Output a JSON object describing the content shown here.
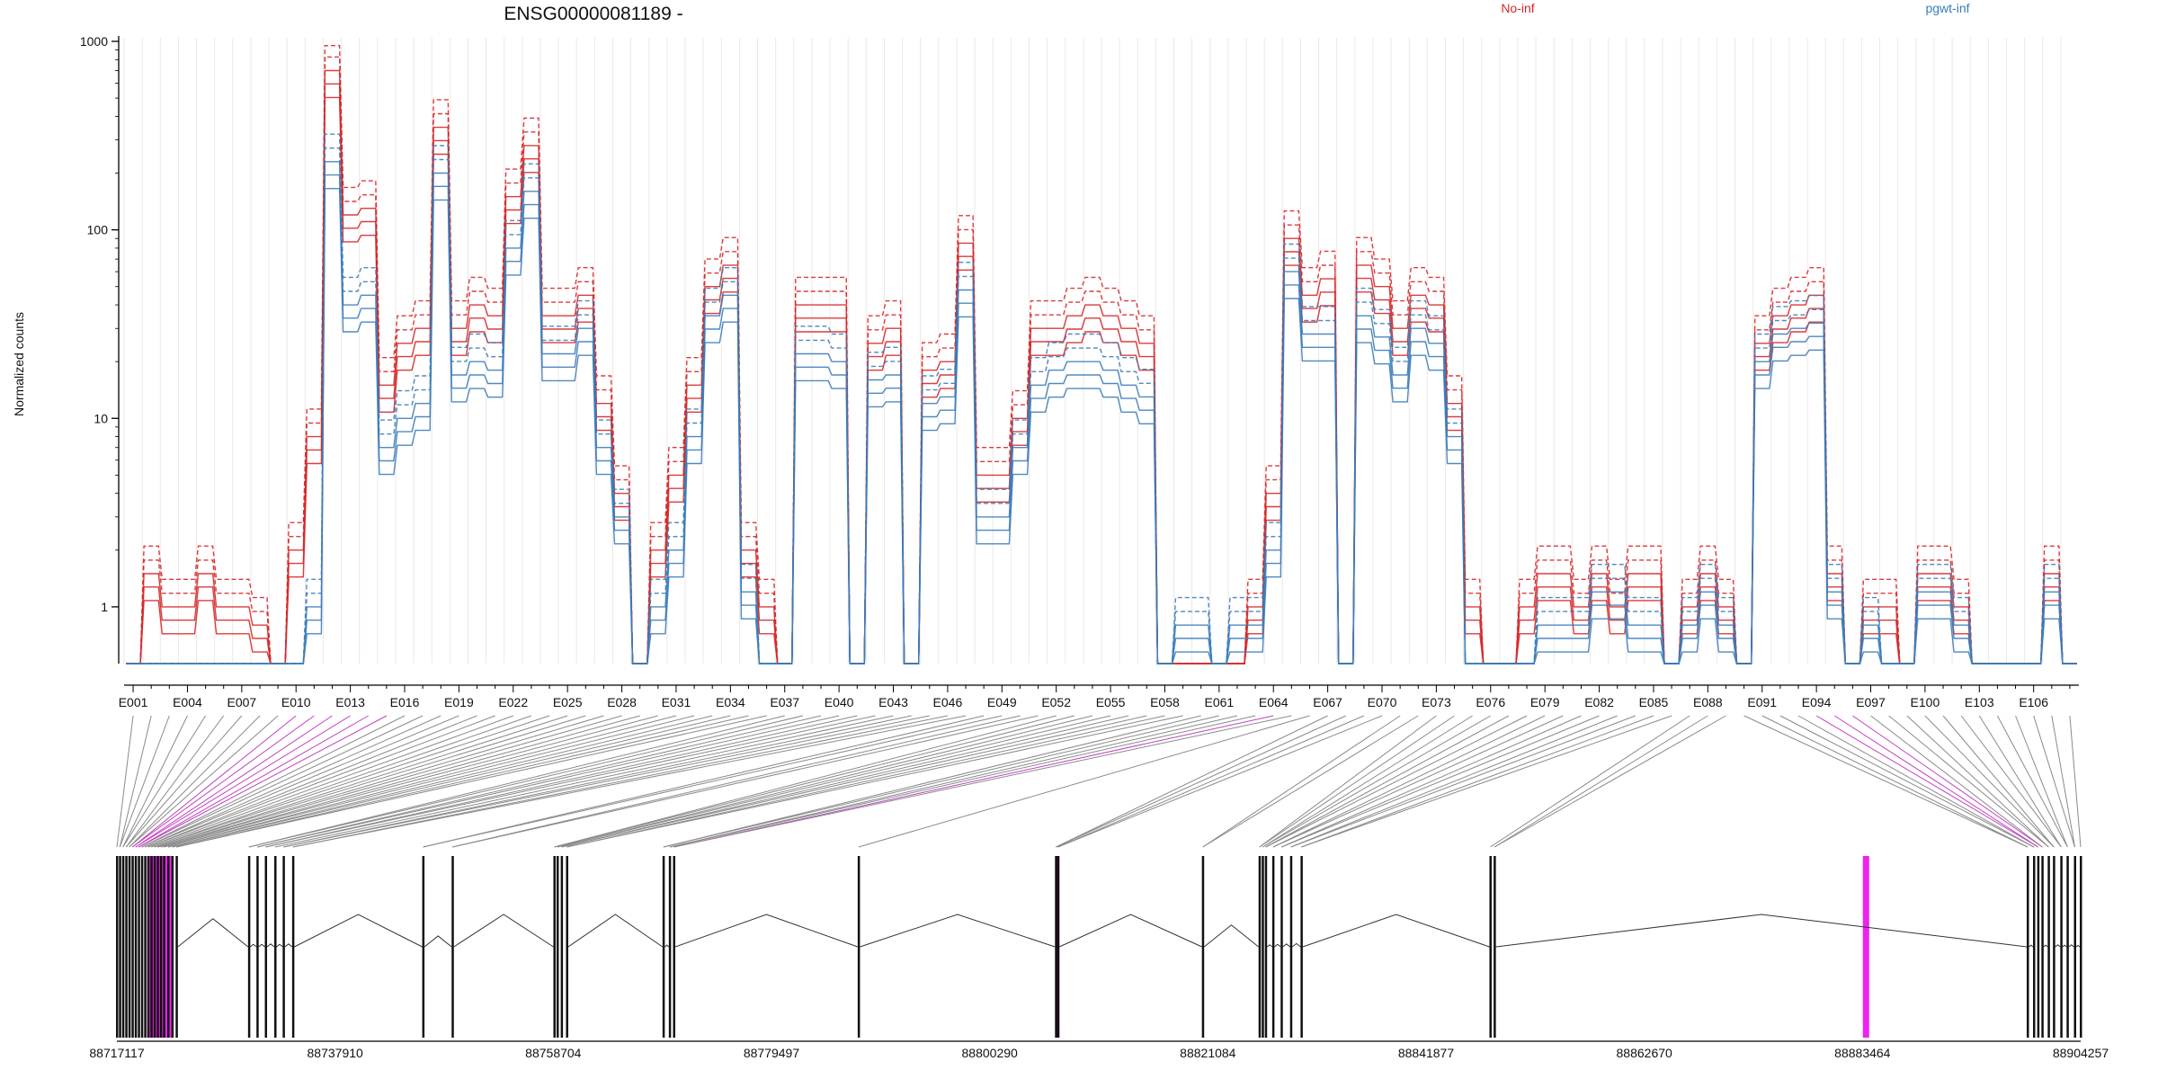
{
  "chart_data": {
    "type": "line",
    "title": "ENSG00000081189 -",
    "ylabel": "Normalized counts",
    "yscale": "log",
    "y_ticks": [
      "1",
      "10",
      "100",
      "1000"
    ],
    "legend_placement": "top-right",
    "colors": {
      "No-inf": "#d62728",
      "pgwt-inf": "#3a7dba",
      "highlight": "#ee22ee"
    },
    "exons": [
      "E001",
      "E002",
      "E003",
      "E004",
      "E005",
      "E006",
      "E007",
      "E008",
      "E009",
      "E010",
      "E011",
      "E012",
      "E013",
      "E014",
      "E015",
      "E016",
      "E017",
      "E018",
      "E019",
      "E020",
      "E021",
      "E022",
      "E023",
      "E024",
      "E025",
      "E026",
      "E027",
      "E028",
      "E029",
      "E030",
      "E031",
      "E032",
      "E033",
      "E034",
      "E035",
      "E036",
      "E037",
      "E038",
      "E039",
      "E040",
      "E041",
      "E042",
      "E043",
      "E044",
      "E045",
      "E046",
      "E047",
      "E048",
      "E049",
      "E050",
      "E051",
      "E052",
      "E053",
      "E054",
      "E055",
      "E056",
      "E057",
      "E058",
      "E059",
      "E060",
      "E061",
      "E062",
      "E063",
      "E064",
      "E065",
      "E066",
      "E067",
      "E068",
      "E069",
      "E070",
      "E071",
      "E072",
      "E073",
      "E074",
      "E075",
      "E076",
      "E077",
      "E078",
      "E079",
      "E080",
      "E081",
      "E082",
      "E083",
      "E084",
      "E085",
      "E086",
      "E087",
      "E088",
      "E089",
      "E090",
      "E091",
      "E092",
      "E093",
      "E094",
      "E095",
      "E096",
      "E097",
      "E098",
      "E099",
      "E100",
      "E101",
      "E102",
      "E103",
      "E104",
      "E105",
      "E106",
      "E107",
      "E108"
    ],
    "exon_tick_labels": [
      "E001",
      "E004",
      "E007",
      "E010",
      "E013",
      "E016",
      "E019",
      "E022",
      "E025",
      "E028",
      "E031",
      "E034",
      "E037",
      "E040",
      "E043",
      "E046",
      "E049",
      "E052",
      "E055",
      "E058",
      "E061",
      "E064",
      "E067",
      "E070",
      "E073",
      "E076",
      "E079",
      "E082",
      "E085",
      "E088",
      "E091",
      "E094",
      "E097",
      "E100",
      "E103",
      "E106"
    ],
    "series_profile": {
      "No-inf": [
        0.5,
        1.5,
        1,
        1,
        1.5,
        1,
        1,
        0.8,
        0.5,
        2,
        8,
        700,
        120,
        130,
        15,
        25,
        30,
        350,
        30,
        40,
        35,
        150,
        280,
        35,
        35,
        45,
        12,
        4,
        0.5,
        2,
        5,
        15,
        50,
        65,
        2,
        1,
        0.5,
        40,
        40,
        40,
        0.5,
        25,
        30,
        0.5,
        18,
        20,
        85,
        5,
        5,
        10,
        30,
        30,
        35,
        40,
        35,
        30,
        25,
        0.5,
        0.5,
        0.5,
        0.5,
        0.5,
        1,
        4,
        90,
        45,
        55,
        0.5,
        65,
        50,
        30,
        45,
        40,
        12,
        1,
        0.5,
        0.5,
        1,
        1.5,
        1.5,
        1,
        1.5,
        1,
        1.5,
        1.5,
        0.5,
        1,
        1.5,
        1,
        0.5,
        25,
        35,
        40,
        45,
        1.5,
        0.5,
        1,
        1,
        0.5,
        1.5,
        1.5,
        1,
        0.5,
        0.5,
        0.5,
        0.5,
        1.5,
        0.5
      ],
      "pgwt-inf": [
        0.5,
        0.5,
        0.5,
        0.5,
        0.5,
        0.5,
        0.5,
        0.5,
        0.5,
        0.5,
        1,
        230,
        40,
        45,
        7,
        10,
        12,
        200,
        17,
        20,
        18,
        80,
        160,
        22,
        22,
        30,
        7,
        3,
        0.5,
        1,
        2,
        8,
        35,
        45,
        1.2,
        0.5,
        0.5,
        22,
        22,
        20,
        0.5,
        16,
        17,
        0.5,
        12,
        13,
        48,
        3,
        3,
        7,
        15,
        18,
        20,
        20,
        18,
        15,
        13,
        0.5,
        0.8,
        0.8,
        0.5,
        0.8,
        0.8,
        2,
        60,
        28,
        28,
        0.5,
        35,
        27,
        17,
        30,
        25,
        8,
        0.5,
        0.5,
        0.5,
        0.5,
        0.8,
        0.8,
        0.8,
        1.2,
        1.2,
        0.8,
        0.8,
        0.5,
        0.8,
        1.2,
        0.8,
        0.5,
        20,
        28,
        30,
        32,
        1.2,
        0.5,
        0.8,
        0.5,
        0.5,
        1.2,
        1.2,
        0.8,
        0.5,
        0.5,
        0.5,
        0.5,
        1.2,
        0.5
      ]
    },
    "series": [
      {
        "name": "No-inf",
        "replicates": 5
      },
      {
        "name": "pgwt-inf",
        "replicates": 5
      }
    ],
    "genomic_axis": {
      "tick_labels": [
        "88717117",
        "88737910",
        "88758704",
        "88779497",
        "88800290",
        "88821084",
        "88841877",
        "88862670",
        "88883464",
        "88904257"
      ],
      "range": [
        88717117,
        88904257
      ]
    },
    "transcript_exons": [
      88717117,
      88717400,
      88717700,
      88718000,
      88718300,
      88718600,
      88718900,
      88719200,
      88719500,
      88719800,
      88720100,
      88720400,
      88720700,
      88721000,
      88721300,
      88721600,
      88722000,
      88722400,
      88722800,
      88729700,
      88730500,
      88731300,
      88732200,
      88733000,
      88733900,
      88746300,
      88749100,
      88758800,
      88759100,
      88759500,
      88760000,
      88769200,
      88769800,
      88770200,
      88787800,
      88806600,
      88806800,
      88820600,
      88826000,
      88826300,
      88826600,
      88827300,
      88828100,
      88829000,
      88830000,
      88848000,
      88848400,
      88899200,
      88899800,
      88900200,
      88900600,
      88901200,
      88901700,
      88902400,
      88903000,
      88903700,
      88904257
    ],
    "highlighted_exons": [
      "E010",
      "E011",
      "E012",
      "E013",
      "E014",
      "E015",
      "E064",
      "E094",
      "E095",
      "E096"
    ],
    "highlighted_regions": [
      [
        88720000,
        88722500
      ],
      [
        88806650,
        88806950
      ],
      [
        88883500,
        88884100
      ]
    ]
  }
}
